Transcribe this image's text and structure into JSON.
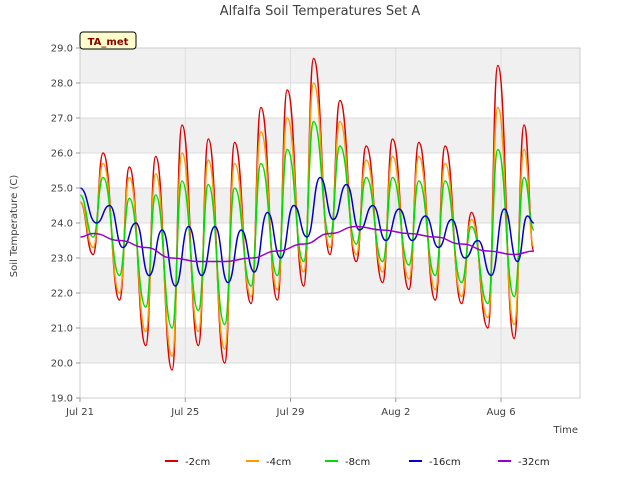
{
  "colors": {
    "band": "#f0f0f0",
    "grid": "#dddddd",
    "badge_bg": "#ffffcc",
    "badge_text": "#8b0000"
  },
  "badge": {
    "text": "TA_met"
  },
  "chart_data": {
    "type": "line",
    "title": "Alfalfa Soil Temperatures Set A",
    "xlabel": "Time",
    "ylabel": "Soil Temperature (C)",
    "xlim": [
      "2023-07-21",
      "2023-08-09"
    ],
    "ylim": [
      19.0,
      29.0
    ],
    "yticks": [
      19.0,
      20.0,
      21.0,
      22.0,
      23.0,
      24.0,
      25.0,
      26.0,
      27.0,
      28.0,
      29.0
    ],
    "yticklabels": [
      "19.0",
      "20.0",
      "21.0",
      "22.0",
      "23.0",
      "24.0",
      "25.0",
      "26.0",
      "27.0",
      "28.0",
      "29.0"
    ],
    "xticks": [
      {
        "date": "2023-07-21",
        "label": "Jul 21"
      },
      {
        "date": "2023-07-25",
        "label": "Jul 25"
      },
      {
        "date": "2023-07-29",
        "label": "Jul 29"
      },
      {
        "date": "2023-08-02",
        "label": "Aug 2"
      },
      {
        "date": "2023-08-06",
        "label": "Aug 6"
      }
    ],
    "grid": true,
    "legend_position": "bottom",
    "series": [
      {
        "name": "-2cm",
        "color": "#dd0000",
        "points": [
          [
            "2023-07-21 00:00",
            24.6
          ],
          [
            "2023-07-21 12:00",
            23.1
          ],
          [
            "2023-07-21 21:00",
            26.0
          ],
          [
            "2023-07-22 12:00",
            21.8
          ],
          [
            "2023-07-22 21:00",
            25.6
          ],
          [
            "2023-07-23 12:00",
            20.5
          ],
          [
            "2023-07-23 21:00",
            25.9
          ],
          [
            "2023-07-24 12:00",
            19.8
          ],
          [
            "2023-07-24 21:00",
            26.8
          ],
          [
            "2023-07-25 12:00",
            20.5
          ],
          [
            "2023-07-25 21:00",
            26.4
          ],
          [
            "2023-07-26 12:00",
            20.0
          ],
          [
            "2023-07-26 21:00",
            26.3
          ],
          [
            "2023-07-27 12:00",
            21.7
          ],
          [
            "2023-07-27 21:00",
            27.3
          ],
          [
            "2023-07-28 12:00",
            21.8
          ],
          [
            "2023-07-28 21:00",
            27.8
          ],
          [
            "2023-07-29 12:00",
            22.2
          ],
          [
            "2023-07-29 21:00",
            28.7
          ],
          [
            "2023-07-30 12:00",
            23.1
          ],
          [
            "2023-07-30 21:00",
            27.5
          ],
          [
            "2023-07-31 12:00",
            22.9
          ],
          [
            "2023-07-31 21:00",
            26.2
          ],
          [
            "2023-08-01 12:00",
            22.3
          ],
          [
            "2023-08-01 21:00",
            26.4
          ],
          [
            "2023-08-02 12:00",
            22.1
          ],
          [
            "2023-08-02 21:00",
            26.3
          ],
          [
            "2023-08-03 12:00",
            21.8
          ],
          [
            "2023-08-03 21:00",
            26.2
          ],
          [
            "2023-08-04 12:00",
            21.7
          ],
          [
            "2023-08-04 21:00",
            24.3
          ],
          [
            "2023-08-05 12:00",
            21.0
          ],
          [
            "2023-08-05 21:00",
            28.5
          ],
          [
            "2023-08-06 12:00",
            20.7
          ],
          [
            "2023-08-06 21:00",
            26.8
          ],
          [
            "2023-08-07 06:00",
            23.2
          ]
        ]
      },
      {
        "name": "-4cm",
        "color": "#ff9900",
        "points": [
          [
            "2023-07-21 00:00",
            24.6
          ],
          [
            "2023-07-21 12:00",
            23.3
          ],
          [
            "2023-07-21 21:00",
            25.7
          ],
          [
            "2023-07-22 12:00",
            22.0
          ],
          [
            "2023-07-22 21:00",
            25.3
          ],
          [
            "2023-07-23 12:00",
            20.9
          ],
          [
            "2023-07-23 21:00",
            25.4
          ],
          [
            "2023-07-24 12:00",
            20.2
          ],
          [
            "2023-07-24 21:00",
            26.0
          ],
          [
            "2023-07-25 12:00",
            20.9
          ],
          [
            "2023-07-25 21:00",
            25.8
          ],
          [
            "2023-07-26 12:00",
            20.4
          ],
          [
            "2023-07-26 21:00",
            25.7
          ],
          [
            "2023-07-27 12:00",
            21.9
          ],
          [
            "2023-07-27 21:00",
            26.6
          ],
          [
            "2023-07-28 12:00",
            22.1
          ],
          [
            "2023-07-28 21:00",
            27.0
          ],
          [
            "2023-07-29 12:00",
            22.6
          ],
          [
            "2023-07-29 21:00",
            28.0
          ],
          [
            "2023-07-30 12:00",
            23.3
          ],
          [
            "2023-07-30 21:00",
            26.9
          ],
          [
            "2023-07-31 12:00",
            23.1
          ],
          [
            "2023-07-31 21:00",
            25.8
          ],
          [
            "2023-08-01 12:00",
            22.6
          ],
          [
            "2023-08-01 21:00",
            25.9
          ],
          [
            "2023-08-02 12:00",
            22.4
          ],
          [
            "2023-08-02 21:00",
            25.9
          ],
          [
            "2023-08-03 12:00",
            22.1
          ],
          [
            "2023-08-03 21:00",
            25.7
          ],
          [
            "2023-08-04 12:00",
            21.9
          ],
          [
            "2023-08-04 21:00",
            24.1
          ],
          [
            "2023-08-05 12:00",
            21.3
          ],
          [
            "2023-08-05 21:00",
            27.3
          ],
          [
            "2023-08-06 12:00",
            21.1
          ],
          [
            "2023-08-06 21:00",
            26.1
          ],
          [
            "2023-08-07 06:00",
            23.3
          ]
        ]
      },
      {
        "name": "-8cm",
        "color": "#00dd00",
        "points": [
          [
            "2023-07-21 00:00",
            24.8
          ],
          [
            "2023-07-21 12:00",
            23.6
          ],
          [
            "2023-07-21 21:00",
            25.3
          ],
          [
            "2023-07-22 12:00",
            22.5
          ],
          [
            "2023-07-22 21:00",
            24.7
          ],
          [
            "2023-07-23 12:00",
            21.6
          ],
          [
            "2023-07-23 21:00",
            24.8
          ],
          [
            "2023-07-24 12:00",
            21.0
          ],
          [
            "2023-07-24 21:00",
            25.2
          ],
          [
            "2023-07-25 12:00",
            21.5
          ],
          [
            "2023-07-25 21:00",
            25.1
          ],
          [
            "2023-07-26 12:00",
            21.1
          ],
          [
            "2023-07-26 21:00",
            25.0
          ],
          [
            "2023-07-27 12:00",
            22.2
          ],
          [
            "2023-07-27 21:00",
            25.7
          ],
          [
            "2023-07-28 12:00",
            22.5
          ],
          [
            "2023-07-28 21:00",
            26.1
          ],
          [
            "2023-07-29 12:00",
            22.9
          ],
          [
            "2023-07-29 21:00",
            26.9
          ],
          [
            "2023-07-30 12:00",
            23.6
          ],
          [
            "2023-07-30 21:00",
            26.2
          ],
          [
            "2023-07-31 12:00",
            23.4
          ],
          [
            "2023-07-31 21:00",
            25.3
          ],
          [
            "2023-08-01 12:00",
            22.9
          ],
          [
            "2023-08-01 21:00",
            25.3
          ],
          [
            "2023-08-02 12:00",
            22.8
          ],
          [
            "2023-08-02 21:00",
            25.2
          ],
          [
            "2023-08-03 12:00",
            22.5
          ],
          [
            "2023-08-03 21:00",
            25.2
          ],
          [
            "2023-08-04 12:00",
            22.3
          ],
          [
            "2023-08-04 21:00",
            23.9
          ],
          [
            "2023-08-05 12:00",
            21.7
          ],
          [
            "2023-08-05 21:00",
            26.1
          ],
          [
            "2023-08-06 12:00",
            21.9
          ],
          [
            "2023-08-06 21:00",
            25.3
          ],
          [
            "2023-08-07 06:00",
            23.8
          ]
        ]
      },
      {
        "name": "-16cm",
        "color": "#0000cc",
        "points": [
          [
            "2023-07-21 00:00",
            25.0
          ],
          [
            "2023-07-21 15:00",
            24.0
          ],
          [
            "2023-07-22 03:00",
            24.5
          ],
          [
            "2023-07-22 15:00",
            23.3
          ],
          [
            "2023-07-23 03:00",
            24.0
          ],
          [
            "2023-07-23 15:00",
            22.5
          ],
          [
            "2023-07-24 03:00",
            23.8
          ],
          [
            "2023-07-24 15:00",
            22.2
          ],
          [
            "2023-07-25 03:00",
            23.9
          ],
          [
            "2023-07-25 15:00",
            22.5
          ],
          [
            "2023-07-26 03:00",
            23.9
          ],
          [
            "2023-07-26 15:00",
            22.3
          ],
          [
            "2023-07-27 03:00",
            23.8
          ],
          [
            "2023-07-27 15:00",
            22.6
          ],
          [
            "2023-07-28 03:00",
            24.3
          ],
          [
            "2023-07-28 15:00",
            23.0
          ],
          [
            "2023-07-29 03:00",
            24.5
          ],
          [
            "2023-07-29 15:00",
            23.6
          ],
          [
            "2023-07-30 03:00",
            25.3
          ],
          [
            "2023-07-30 15:00",
            24.1
          ],
          [
            "2023-07-31 03:00",
            25.1
          ],
          [
            "2023-07-31 15:00",
            23.8
          ],
          [
            "2023-08-01 03:00",
            24.5
          ],
          [
            "2023-08-01 15:00",
            23.5
          ],
          [
            "2023-08-02 03:00",
            24.4
          ],
          [
            "2023-08-02 15:00",
            23.5
          ],
          [
            "2023-08-03 03:00",
            24.2
          ],
          [
            "2023-08-03 15:00",
            23.3
          ],
          [
            "2023-08-04 03:00",
            24.1
          ],
          [
            "2023-08-04 15:00",
            23.0
          ],
          [
            "2023-08-05 03:00",
            23.5
          ],
          [
            "2023-08-05 15:00",
            22.5
          ],
          [
            "2023-08-06 03:00",
            24.4
          ],
          [
            "2023-08-06 15:00",
            22.9
          ],
          [
            "2023-08-07 00:00",
            24.2
          ],
          [
            "2023-08-07 06:00",
            24.0
          ]
        ]
      },
      {
        "name": "-32cm",
        "color": "#9900cc",
        "points": [
          [
            "2023-07-21 00:00",
            23.6
          ],
          [
            "2023-07-21 12:00",
            23.7
          ],
          [
            "2023-07-22 12:00",
            23.5
          ],
          [
            "2023-07-23 12:00",
            23.3
          ],
          [
            "2023-07-24 12:00",
            23.0
          ],
          [
            "2023-07-25 12:00",
            22.9
          ],
          [
            "2023-07-26 12:00",
            22.9
          ],
          [
            "2023-07-27 12:00",
            23.0
          ],
          [
            "2023-07-28 12:00",
            23.2
          ],
          [
            "2023-07-29 12:00",
            23.4
          ],
          [
            "2023-07-30 12:00",
            23.7
          ],
          [
            "2023-07-31 12:00",
            23.9
          ],
          [
            "2023-08-01 12:00",
            23.8
          ],
          [
            "2023-08-02 12:00",
            23.7
          ],
          [
            "2023-08-03 12:00",
            23.6
          ],
          [
            "2023-08-04 12:00",
            23.4
          ],
          [
            "2023-08-05 12:00",
            23.2
          ],
          [
            "2023-08-06 12:00",
            23.1
          ],
          [
            "2023-08-07 06:00",
            23.2
          ]
        ]
      }
    ]
  }
}
